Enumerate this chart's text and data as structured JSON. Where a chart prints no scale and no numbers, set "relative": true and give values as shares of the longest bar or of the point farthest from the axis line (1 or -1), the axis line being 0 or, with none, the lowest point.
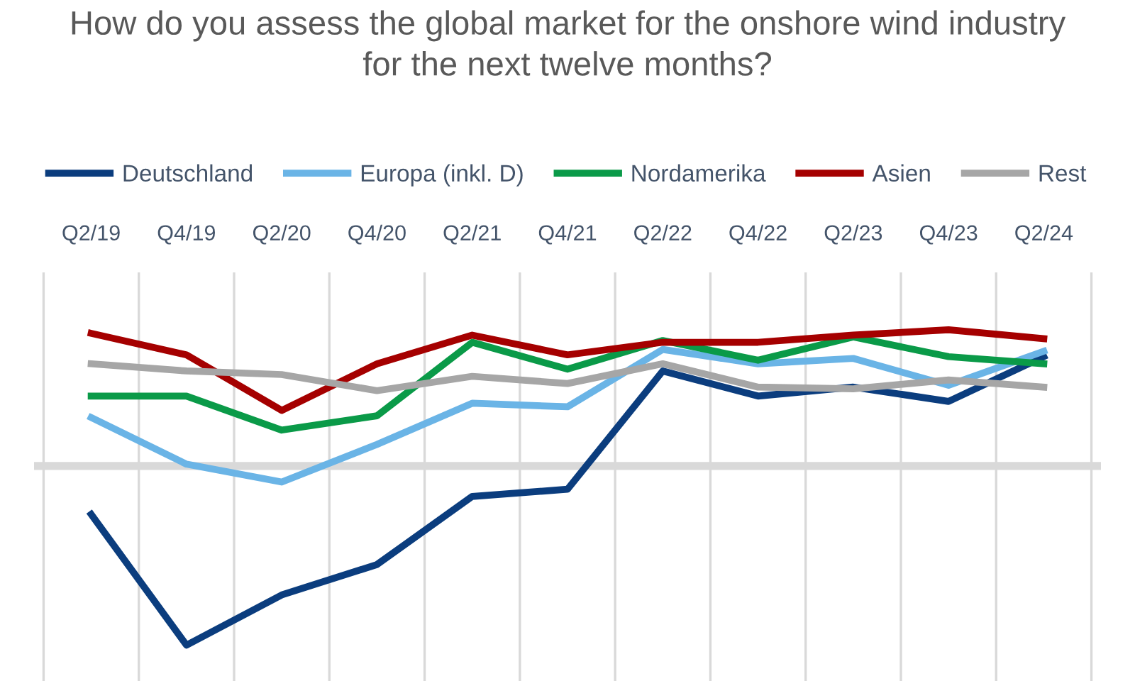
{
  "chart_data": {
    "type": "line",
    "title": "How do you assess the global market for the onshore wind industry\nfor the next twelve months?",
    "relative": true,
    "grid": "x",
    "legend": "top",
    "marker": "none",
    "line_style": "solid",
    "categories": [
      "Q2/19",
      "Q4/19",
      "Q2/20",
      "Q4/20",
      "Q2/21",
      "Q4/21",
      "Q2/22",
      "Q4/22",
      "Q2/23",
      "Q4/23",
      "Q2/24"
    ],
    "series": [
      {
        "name": "Deutschland",
        "color": "#0b3d7e",
        "values": [
          -0.27,
          -1,
          -0.72,
          -0.55,
          -0.17,
          -0.13,
          0.53,
          0.39,
          0.44,
          0.36,
          0.61
        ]
      },
      {
        "name": "Europa (inkl. D)",
        "color": "#6ab4e6",
        "values": [
          0.27,
          0.01,
          -0.09,
          0.12,
          0.35,
          0.33,
          0.65,
          0.57,
          0.6,
          0.45,
          0.64
        ]
      },
      {
        "name": "Nordamerika",
        "color": "#0a9a48",
        "values": [
          0.39,
          0.39,
          0.2,
          0.28,
          0.69,
          0.54,
          0.7,
          0.59,
          0.72,
          0.61,
          0.57
        ]
      },
      {
        "name": "Asien",
        "color": "#a50000",
        "values": [
          0.74,
          0.62,
          0.31,
          0.57,
          0.73,
          0.62,
          0.69,
          0.69,
          0.73,
          0.76,
          0.71
        ]
      },
      {
        "name": "Rest",
        "color": "#a6a6a6",
        "values": [
          0.57,
          0.53,
          0.51,
          0.42,
          0.5,
          0.46,
          0.57,
          0.44,
          0.43,
          0.48,
          0.44
        ]
      }
    ]
  }
}
